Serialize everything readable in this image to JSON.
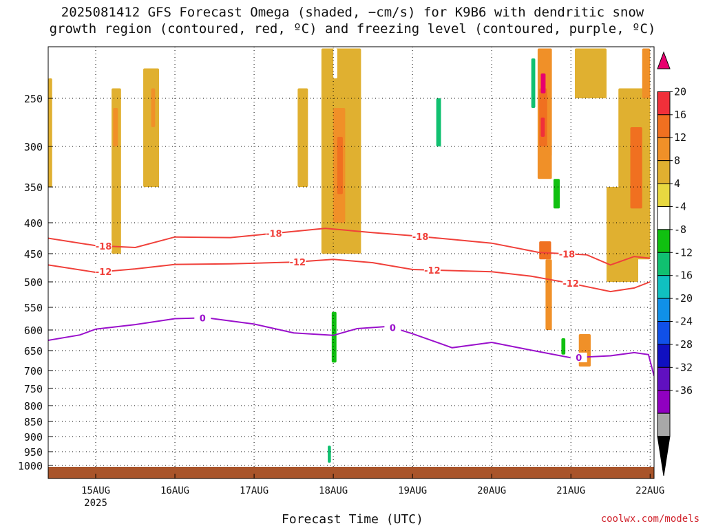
{
  "title_line1": "2025081412 GFS Forecast Omega (shaded, −cm/s) for K9B6 with dendritic snow",
  "title_line2": "growth region (contoured, red, ºC) and freezing level (contoured, purple, ºC)",
  "xlabel": "Forecast Time (UTC)",
  "credit": "coolwx.com/models",
  "colors": {
    "dgz_contour": "#f0403a",
    "freezing_contour": "#9a10cc",
    "terrain": "#a9542a"
  },
  "chart_data": {
    "type": "heatmap",
    "x_unit": "forecast day (Aug 2025, UTC)",
    "xlim": [
      14.4,
      22.05
    ],
    "x_ticks": [
      {
        "value": 15,
        "label": "15AUG",
        "sub": "2025"
      },
      {
        "value": 16,
        "label": "16AUG",
        "sub": ""
      },
      {
        "value": 17,
        "label": "17AUG",
        "sub": ""
      },
      {
        "value": 18,
        "label": "18AUG",
        "sub": ""
      },
      {
        "value": 19,
        "label": "19AUG",
        "sub": ""
      },
      {
        "value": 20,
        "label": "20AUG",
        "sub": ""
      },
      {
        "value": 21,
        "label": "21AUG",
        "sub": ""
      },
      {
        "value": 22,
        "label": "22AUG",
        "sub": ""
      }
    ],
    "y_unit": "hPa",
    "y_ticks": [
      250,
      300,
      350,
      400,
      450,
      500,
      550,
      600,
      650,
      700,
      750,
      800,
      850,
      900,
      950,
      1000
    ],
    "ylim": [
      200,
      1020
    ],
    "grid": true,
    "colorbar": {
      "labels": [
        20,
        16,
        12,
        8,
        4,
        -4,
        -8,
        -12,
        -16,
        -20,
        -24,
        -28,
        -32,
        -36
      ],
      "colors": [
        "#e8006e",
        "#f0303a",
        "#f07020",
        "#f09028",
        "#e0b030",
        "#e8d840",
        "#ffffff",
        "#10c010",
        "#10c070",
        "#10c0c0",
        "#1090e8",
        "#1050e8",
        "#1010c0",
        "#6010c0",
        "#9000c0",
        "#a8a8a8",
        "#000000"
      ]
    },
    "omega_cells": [
      {
        "x0": 14.4,
        "x1": 14.45,
        "p0": 230,
        "p1": 350,
        "v": 5
      },
      {
        "x0": 15.2,
        "x1": 15.32,
        "p0": 240,
        "p1": 450,
        "v": 6
      },
      {
        "x0": 15.22,
        "x1": 15.28,
        "p0": 260,
        "p1": 300,
        "v": 10
      },
      {
        "x0": 15.6,
        "x1": 15.8,
        "p0": 220,
        "p1": 350,
        "v": 6
      },
      {
        "x0": 15.7,
        "x1": 15.75,
        "p0": 240,
        "p1": 280,
        "v": 9
      },
      {
        "x0": 17.55,
        "x1": 17.68,
        "p0": 240,
        "p1": 350,
        "v": 6
      },
      {
        "x0": 17.55,
        "x1": 17.6,
        "p0": 360,
        "p1": 380,
        "v": -5
      },
      {
        "x0": 17.0,
        "x1": 17.05,
        "p0": 230,
        "p1": 280,
        "v": -5
      },
      {
        "x0": 17.85,
        "x1": 18.35,
        "p0": 200,
        "p1": 450,
        "v": 6
      },
      {
        "x0": 18.0,
        "x1": 18.15,
        "p0": 260,
        "p1": 400,
        "v": 9
      },
      {
        "x0": 18.05,
        "x1": 18.12,
        "p0": 290,
        "p1": 360,
        "v": 12
      },
      {
        "x0": 18.0,
        "x1": 18.05,
        "p0": 200,
        "p1": 230,
        "v": -8
      },
      {
        "x0": 17.95,
        "x1": 18.08,
        "p0": 540,
        "p1": 720,
        "v": -7
      },
      {
        "x0": 17.98,
        "x1": 18.04,
        "p0": 560,
        "p1": 680,
        "v": -12
      },
      {
        "x0": 17.9,
        "x1": 18.0,
        "p0": 890,
        "p1": 1000,
        "v": -8
      },
      {
        "x0": 17.93,
        "x1": 17.97,
        "p0": 930,
        "p1": 990,
        "v": -16
      },
      {
        "x0": 19.25,
        "x1": 19.42,
        "p0": 220,
        "p1": 330,
        "v": -7
      },
      {
        "x0": 19.3,
        "x1": 19.36,
        "p0": 250,
        "p1": 300,
        "v": -14
      },
      {
        "x0": 20.45,
        "x1": 20.58,
        "p0": 200,
        "p1": 280,
        "v": -8
      },
      {
        "x0": 20.5,
        "x1": 20.55,
        "p0": 210,
        "p1": 260,
        "v": -14
      },
      {
        "x0": 20.58,
        "x1": 20.76,
        "p0": 200,
        "p1": 340,
        "v": 10
      },
      {
        "x0": 20.6,
        "x1": 20.7,
        "p0": 240,
        "p1": 300,
        "v": 14
      },
      {
        "x0": 20.62,
        "x1": 20.68,
        "p0": 225,
        "p1": 245,
        "v": 20
      },
      {
        "x0": 20.62,
        "x1": 20.67,
        "p0": 270,
        "p1": 290,
        "v": 18
      },
      {
        "x0": 20.76,
        "x1": 20.95,
        "p0": 310,
        "p1": 390,
        "v": -8
      },
      {
        "x0": 20.78,
        "x1": 20.86,
        "p0": 340,
        "p1": 380,
        "v": -12
      },
      {
        "x0": 20.6,
        "x1": 20.75,
        "p0": 430,
        "p1": 460,
        "v": 12
      },
      {
        "x0": 20.68,
        "x1": 20.76,
        "p0": 460,
        "p1": 600,
        "v": 9
      },
      {
        "x0": 20.64,
        "x1": 20.72,
        "p0": 660,
        "p1": 820,
        "v": -7
      },
      {
        "x0": 20.85,
        "x1": 20.95,
        "p0": 610,
        "p1": 690,
        "v": -7
      },
      {
        "x0": 20.88,
        "x1": 20.93,
        "p0": 620,
        "p1": 660,
        "v": -12
      },
      {
        "x0": 21.1,
        "x1": 21.25,
        "p0": 610,
        "p1": 690,
        "v": 8
      },
      {
        "x0": 21.05,
        "x1": 21.45,
        "p0": 200,
        "p1": 250,
        "v": 5
      },
      {
        "x0": 21.45,
        "x1": 21.85,
        "p0": 350,
        "p1": 500,
        "v": 6
      },
      {
        "x0": 21.6,
        "x1": 22.0,
        "p0": 240,
        "p1": 460,
        "v": 7
      },
      {
        "x0": 21.75,
        "x1": 21.9,
        "p0": 280,
        "p1": 380,
        "v": 12
      },
      {
        "x0": 21.85,
        "x1": 22.0,
        "p0": 540,
        "p1": 650,
        "v": -7
      },
      {
        "x0": 21.9,
        "x1": 22.0,
        "p0": 200,
        "p1": 250,
        "v": 8
      }
    ],
    "contours": [
      {
        "name": "-18",
        "color_key": "dgz_contour",
        "points": [
          [
            14.4,
            425
          ],
          [
            15.0,
            437
          ],
          [
            15.5,
            440
          ],
          [
            16.0,
            423
          ],
          [
            16.7,
            424
          ],
          [
            17.5,
            414
          ],
          [
            17.9,
            409
          ],
          [
            18.5,
            416
          ],
          [
            19.0,
            421
          ],
          [
            19.5,
            427
          ],
          [
            20.0,
            433
          ],
          [
            20.6,
            448
          ],
          [
            21.2,
            452
          ],
          [
            21.5,
            470
          ],
          [
            21.8,
            455
          ],
          [
            22.0,
            458
          ]
        ],
        "labels_at": [
          15.1,
          17.25,
          19.1,
          20.95
        ]
      },
      {
        "name": "-12",
        "color_key": "dgz_contour",
        "points": [
          [
            14.4,
            470
          ],
          [
            15.0,
            483
          ],
          [
            15.5,
            477
          ],
          [
            16.0,
            469
          ],
          [
            16.7,
            468
          ],
          [
            17.5,
            465
          ],
          [
            18.0,
            460
          ],
          [
            18.5,
            466
          ],
          [
            19.0,
            478
          ],
          [
            19.5,
            480
          ],
          [
            20.0,
            482
          ],
          [
            20.5,
            490
          ],
          [
            21.0,
            503
          ],
          [
            21.5,
            519
          ],
          [
            21.8,
            512
          ],
          [
            22.0,
            500
          ]
        ],
        "labels_at": [
          15.1,
          17.55,
          19.25,
          21.0
        ]
      },
      {
        "name": "0",
        "color_key": "freezing_contour",
        "points": [
          [
            14.4,
            625
          ],
          [
            14.8,
            612
          ],
          [
            15.0,
            598
          ],
          [
            15.5,
            588
          ],
          [
            16.0,
            575
          ],
          [
            16.4,
            573
          ],
          [
            17.0,
            587
          ],
          [
            17.5,
            607
          ],
          [
            18.0,
            613
          ],
          [
            18.3,
            597
          ],
          [
            18.7,
            592
          ],
          [
            19.0,
            609
          ],
          [
            19.5,
            643
          ],
          [
            20.0,
            630
          ],
          [
            20.5,
            649
          ],
          [
            21.0,
            668
          ],
          [
            21.5,
            663
          ],
          [
            21.8,
            655
          ],
          [
            21.98,
            660
          ],
          [
            22.05,
            715
          ]
        ],
        "labels_at": [
          16.35,
          18.75,
          21.1
        ]
      }
    ]
  }
}
